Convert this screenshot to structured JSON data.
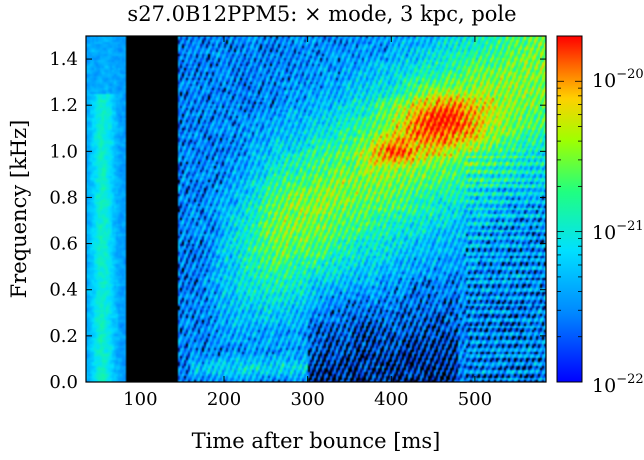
{
  "chart_data": {
    "type": "heatmap",
    "title": "s27.0B12PPM5: × mode, 3 kpc, pole",
    "xlabel": "Time after bounce [ms]",
    "ylabel": "Frequency [kHz]",
    "xlim": [
      35,
      585
    ],
    "ylim": [
      0.0,
      1.5
    ],
    "xticks": [
      100,
      200,
      300,
      400,
      500
    ],
    "xtick_labels": [
      "100",
      "200",
      "300",
      "400",
      "500"
    ],
    "yticks": [
      0.0,
      0.2,
      0.4,
      0.6,
      0.8,
      1.0,
      1.2,
      1.4
    ],
    "ytick_labels": [
      "0.0",
      "0.2",
      "0.4",
      "0.6",
      "0.8",
      "1.0",
      "1.2",
      "1.4"
    ],
    "colorbar": {
      "scale": "log",
      "range": [
        1e-22,
        2e-20
      ],
      "ticks": [
        1e-22,
        1e-21,
        1e-20
      ],
      "tick_labels": [
        "10^-22",
        "10^-21",
        "10^-20"
      ],
      "colormap": "jet"
    },
    "features": [
      {
        "name": "quiescent-gap",
        "t_range": [
          80,
          145
        ],
        "f_range": [
          0.0,
          1.5
        ],
        "level": "below 1e-22"
      },
      {
        "name": "early-low-frequency-band",
        "t_range": [
          35,
          80
        ],
        "f_range": [
          0.0,
          1.25
        ],
        "level": "about 3e-22"
      },
      {
        "name": "rising-main-ridge",
        "t_start": 190,
        "f_start": 0.5,
        "t_end": 585,
        "f_end": 1.35,
        "peak_time": 460,
        "peak_freq": 1.13,
        "peak_level": "about 2e-20"
      },
      {
        "name": "low-frequency-sasi-band",
        "t_range": [
          160,
          300
        ],
        "f_range": [
          0.02,
          0.15
        ],
        "level": "about 4e-22"
      },
      {
        "name": "post-500ms-harmonic-striations",
        "t_range": [
          490,
          585
        ],
        "f_range": [
          0.0,
          1.0
        ],
        "level": "about 3e-22"
      }
    ]
  },
  "axis_labels": {
    "title": "s27.0B12PPM5: × mode, 3 kpc, pole",
    "xlabel": "Time after bounce [ms]",
    "ylabel": "Frequency [kHz]",
    "cb_high": "10",
    "cb_high_exp": "−20",
    "cb_mid": "10",
    "cb_mid_exp": "−21",
    "cb_low": "10",
    "cb_low_exp": "−22"
  }
}
